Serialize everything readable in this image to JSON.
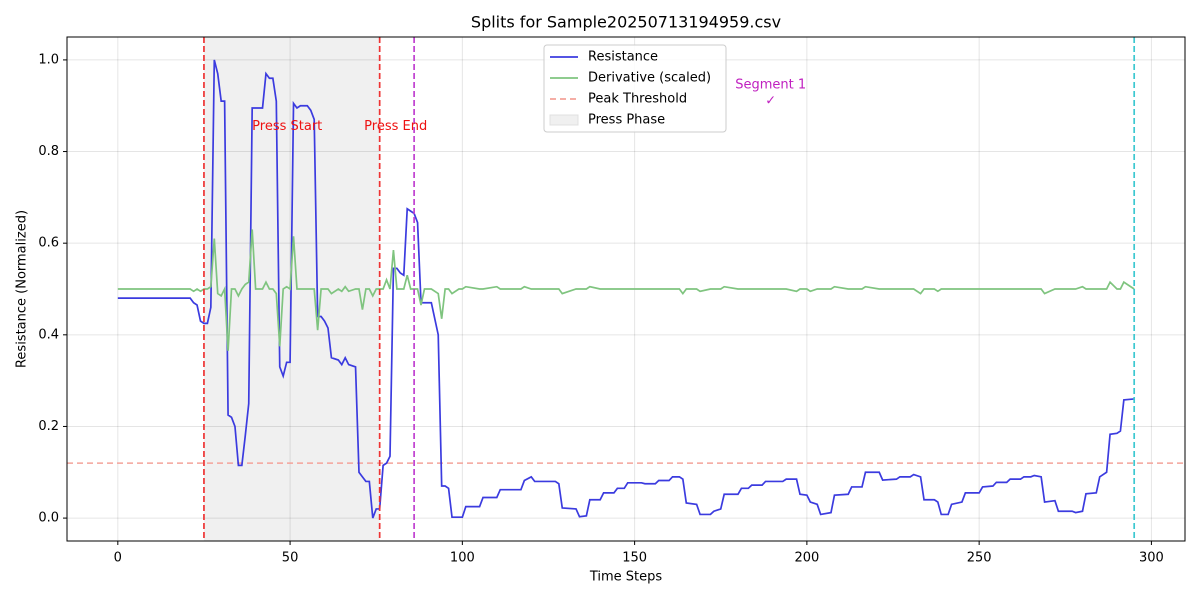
{
  "chart_data": {
    "type": "line",
    "title": "Splits for Sample20250713194959.csv",
    "xlabel": "Time Steps",
    "ylabel": "Resistance (Normalized)",
    "xlim": [
      -14.75,
      309.75
    ],
    "ylim": [
      -0.05,
      1.05
    ],
    "xticks": [
      0,
      50,
      100,
      150,
      200,
      250,
      300
    ],
    "yticks": [
      {
        "value": 0,
        "label": "0.0"
      },
      {
        "value": 0.2,
        "label": "0.2"
      },
      {
        "value": 0.4,
        "label": "0.4"
      },
      {
        "value": 0.6,
        "label": "0.6"
      },
      {
        "value": 0.8,
        "label": "0.8"
      },
      {
        "value": 1,
        "label": "1.0"
      }
    ],
    "grid": true,
    "legend": "upper center",
    "x": [
      0,
      20,
      21,
      22,
      23,
      24,
      25,
      26,
      27,
      28,
      29,
      30,
      31,
      32,
      33,
      34,
      35,
      36,
      37,
      38,
      39,
      40,
      42,
      43,
      44,
      45,
      46,
      47,
      48,
      49,
      50,
      51,
      52,
      53,
      55,
      56,
      57,
      58,
      59,
      60,
      61,
      62,
      64,
      65,
      66,
      67,
      69,
      70,
      71,
      72,
      73,
      74,
      75,
      76,
      77,
      78,
      79,
      80,
      81,
      82,
      83,
      84,
      85,
      86,
      87,
      88,
      89,
      91,
      93,
      94,
      95,
      96,
      97,
      99,
      100,
      101,
      105,
      106,
      110,
      111,
      117,
      118,
      120,
      121,
      127,
      128,
      129,
      133,
      134,
      136,
      137,
      140,
      141,
      144,
      145,
      147,
      148,
      152,
      153,
      156,
      157,
      160,
      161,
      163,
      164,
      165,
      168,
      169,
      172,
      173,
      175,
      176,
      180,
      181,
      183,
      184,
      187,
      188,
      193,
      194,
      197,
      198,
      200,
      201,
      203,
      204,
      207,
      208,
      212,
      213,
      216,
      217,
      221,
      222,
      226,
      227,
      230,
      231,
      233,
      234,
      237,
      238,
      239,
      241,
      242,
      245,
      246,
      250,
      251,
      254,
      255,
      258,
      259,
      262,
      263,
      265,
      266,
      268,
      269,
      272,
      273,
      277,
      278,
      280,
      281,
      284,
      285,
      287,
      288,
      290,
      291,
      292,
      295
    ],
    "series": [
      {
        "name": "Resistance",
        "color": "#3b3bdf",
        "values": [
          0.48,
          0.48,
          0.48,
          0.47,
          0.465,
          0.43,
          0.425,
          0.425,
          0.46,
          1.0,
          0.97,
          0.91,
          0.91,
          0.225,
          0.22,
          0.2,
          0.115,
          0.115,
          0.18,
          0.25,
          0.895,
          0.895,
          0.895,
          0.97,
          0.96,
          0.96,
          0.91,
          0.33,
          0.31,
          0.34,
          0.34,
          0.905,
          0.895,
          0.9,
          0.9,
          0.89,
          0.87,
          0.44,
          0.44,
          0.43,
          0.415,
          0.35,
          0.345,
          0.335,
          0.35,
          0.335,
          0.33,
          0.1,
          0.09,
          0.08,
          0.08,
          0.0,
          0.02,
          0.02,
          0.115,
          0.12,
          0.135,
          0.545,
          0.545,
          0.535,
          0.53,
          0.675,
          0.67,
          0.665,
          0.645,
          0.47,
          0.47,
          0.47,
          0.4,
          0.07,
          0.07,
          0.065,
          0.002,
          0.002,
          0.002,
          0.025,
          0.025,
          0.045,
          0.045,
          0.062,
          0.062,
          0.082,
          0.09,
          0.08,
          0.08,
          0.075,
          0.022,
          0.02,
          0.003,
          0.005,
          0.04,
          0.04,
          0.055,
          0.055,
          0.065,
          0.065,
          0.077,
          0.077,
          0.075,
          0.075,
          0.082,
          0.082,
          0.09,
          0.09,
          0.085,
          0.033,
          0.03,
          0.008,
          0.008,
          0.015,
          0.02,
          0.052,
          0.052,
          0.065,
          0.065,
          0.072,
          0.072,
          0.08,
          0.08,
          0.085,
          0.085,
          0.052,
          0.05,
          0.035,
          0.03,
          0.008,
          0.012,
          0.05,
          0.052,
          0.068,
          0.068,
          0.1,
          0.1,
          0.083,
          0.085,
          0.09,
          0.09,
          0.095,
          0.09,
          0.04,
          0.04,
          0.035,
          0.008,
          0.008,
          0.03,
          0.035,
          0.055,
          0.055,
          0.068,
          0.07,
          0.078,
          0.078,
          0.085,
          0.085,
          0.09,
          0.09,
          0.093,
          0.09,
          0.035,
          0.038,
          0.015,
          0.015,
          0.012,
          0.015,
          0.053,
          0.055,
          0.09,
          0.1,
          0.183,
          0.185,
          0.19,
          0.258,
          0.26
        ]
      },
      {
        "name": "Derivative (scaled)",
        "color": "#7fc47f",
        "values": [
          0.5,
          0.5,
          0.5,
          0.495,
          0.5,
          0.495,
          0.5,
          0.5,
          0.505,
          0.61,
          0.49,
          0.485,
          0.5,
          0.365,
          0.5,
          0.5,
          0.485,
          0.5,
          0.51,
          0.515,
          0.63,
          0.5,
          0.5,
          0.515,
          0.5,
          0.5,
          0.49,
          0.375,
          0.5,
          0.505,
          0.5,
          0.615,
          0.5,
          0.5,
          0.5,
          0.5,
          0.5,
          0.41,
          0.5,
          0.5,
          0.5,
          0.49,
          0.5,
          0.495,
          0.505,
          0.495,
          0.5,
          0.5,
          0.455,
          0.5,
          0.5,
          0.485,
          0.5,
          0.5,
          0.5,
          0.52,
          0.5,
          0.585,
          0.5,
          0.5,
          0.5,
          0.53,
          0.5,
          0.5,
          0.5,
          0.465,
          0.5,
          0.5,
          0.49,
          0.435,
          0.5,
          0.5,
          0.49,
          0.5,
          0.5,
          0.505,
          0.5,
          0.5,
          0.505,
          0.5,
          0.5,
          0.505,
          0.5,
          0.5,
          0.5,
          0.5,
          0.49,
          0.5,
          0.5,
          0.5,
          0.505,
          0.5,
          0.5,
          0.5,
          0.5,
          0.5,
          0.5,
          0.5,
          0.5,
          0.5,
          0.5,
          0.5,
          0.5,
          0.5,
          0.49,
          0.5,
          0.5,
          0.495,
          0.5,
          0.5,
          0.5,
          0.505,
          0.5,
          0.5,
          0.5,
          0.5,
          0.5,
          0.5,
          0.5,
          0.5,
          0.495,
          0.5,
          0.5,
          0.495,
          0.5,
          0.5,
          0.5,
          0.505,
          0.5,
          0.5,
          0.5,
          0.505,
          0.5,
          0.5,
          0.5,
          0.5,
          0.5,
          0.5,
          0.49,
          0.5,
          0.5,
          0.495,
          0.5,
          0.5,
          0.5,
          0.5,
          0.5,
          0.5,
          0.5,
          0.5,
          0.5,
          0.5,
          0.5,
          0.5,
          0.5,
          0.5,
          0.5,
          0.5,
          0.49,
          0.5,
          0.5,
          0.5,
          0.5,
          0.505,
          0.5,
          0.5,
          0.5,
          0.5,
          0.515,
          0.5,
          0.5,
          0.515,
          0.5
        ]
      }
    ],
    "threshold": {
      "name": "Peak Threshold",
      "y": 0.12,
      "color": "#f4a39a"
    },
    "span": {
      "name": "Press Phase",
      "x": [
        25,
        76
      ],
      "color": "#f0f0f0"
    },
    "vlines": [
      {
        "x": 25,
        "color": "#ee3333"
      },
      {
        "x": 76,
        "color": "#ee3333"
      },
      {
        "x": 86,
        "color": "#c040d0"
      },
      {
        "x": 295,
        "color": "#3cc8d0"
      }
    ],
    "annotations": [
      {
        "text": "Press Start",
        "x": 39,
        "y": 0.855,
        "color": "#ee1111",
        "ha": "start"
      },
      {
        "text": "Press End",
        "x": 71.5,
        "y": 0.855,
        "color": "#ee1111",
        "ha": "start"
      },
      {
        "text": "Segment 1",
        "x": 189.5,
        "y": 0.945,
        "color": "#c020c0",
        "ha": "middle"
      },
      {
        "text": "✓",
        "x": 189.5,
        "y": 0.91,
        "color": "#c020c0",
        "ha": "middle"
      }
    ]
  }
}
